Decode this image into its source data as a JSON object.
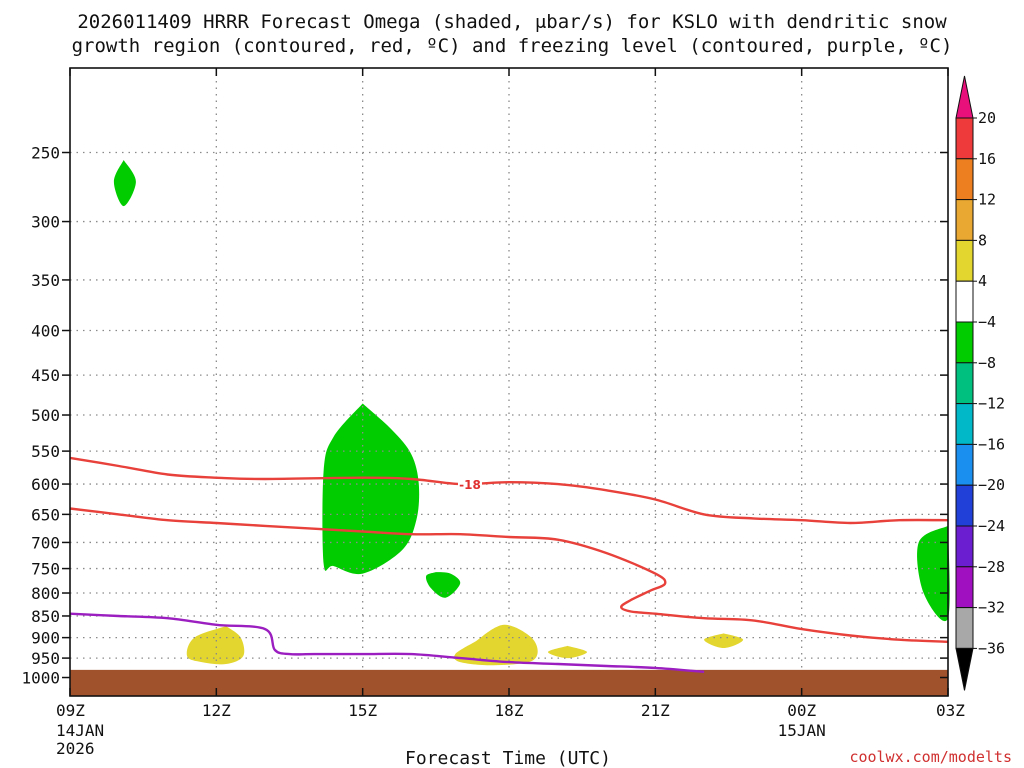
{
  "title": {
    "line1": "2026011409 HRRR Forecast Omega (shaded, μbar/s) for KSLO with dendritic snow",
    "line2": "growth region (contoured, red, ºC) and freezing level (contoured, purple, ºC)"
  },
  "credit": "coolwx.com/modelts",
  "colors": {
    "ground": "#a0522d",
    "dgz_contour": "#e8403a",
    "freezing_level": "#9b1fc0",
    "grid": "#8a8a8a"
  },
  "chart_data": {
    "type": "heatmap",
    "xlabel": "Forecast Time (UTC)",
    "x_ticks": [
      {
        "hour": 0,
        "label": "09Z",
        "sub": [
          "14JAN",
          "2026"
        ]
      },
      {
        "hour": 3,
        "label": "12Z",
        "sub": []
      },
      {
        "hour": 6,
        "label": "15Z",
        "sub": []
      },
      {
        "hour": 9,
        "label": "18Z",
        "sub": []
      },
      {
        "hour": 12,
        "label": "21Z",
        "sub": []
      },
      {
        "hour": 15,
        "label": "00Z",
        "sub": [
          "15JAN"
        ]
      },
      {
        "hour": 18,
        "label": "03Z",
        "sub": []
      }
    ],
    "xlim_hours": [
      0,
      18
    ],
    "y_scale": "log",
    "ylim_hPa": [
      1050,
      200
    ],
    "y_ticks": [
      250,
      300,
      350,
      400,
      450,
      500,
      550,
      600,
      650,
      700,
      750,
      800,
      850,
      900,
      950,
      1000
    ],
    "grid": true,
    "colorbar": {
      "ticks": [
        "20",
        "16",
        "12",
        "8",
        "4",
        "−4",
        "−8",
        "−12",
        "−16",
        "−20",
        "−24",
        "−28",
        "−32",
        "−36"
      ],
      "bins": [
        {
          "range": [
            20,
            99
          ],
          "color": "#e8107a"
        },
        {
          "range": [
            16,
            20
          ],
          "color": "#ee3a3a"
        },
        {
          "range": [
            12,
            16
          ],
          "color": "#ee7f20"
        },
        {
          "range": [
            8,
            12
          ],
          "color": "#e8a831"
        },
        {
          "range": [
            4,
            8
          ],
          "color": "#e3d62e"
        },
        {
          "range": [
            -4,
            4
          ],
          "color": "#ffffff"
        },
        {
          "range": [
            -8,
            -4
          ],
          "color": "#00cc00"
        },
        {
          "range": [
            -12,
            -8
          ],
          "color": "#00c080"
        },
        {
          "range": [
            -16,
            -12
          ],
          "color": "#00b8c8"
        },
        {
          "range": [
            -20,
            -16
          ],
          "color": "#1a8ff0"
        },
        {
          "range": [
            -24,
            -20
          ],
          "color": "#2040d8"
        },
        {
          "range": [
            -28,
            -24
          ],
          "color": "#6a1ed0"
        },
        {
          "range": [
            -32,
            -28
          ],
          "color": "#a010c0"
        },
        {
          "range": [
            -36,
            -32
          ],
          "color": "#a8a8a8"
        },
        {
          "range": [
            -99,
            -36
          ],
          "color": "#000000"
        }
      ]
    },
    "shaded_regions": [
      {
        "bin": "-8 to -4",
        "color": "#00cc00",
        "points": [
          [
            1.1,
            255
          ],
          [
            1.35,
            270
          ],
          [
            1.1,
            288
          ],
          [
            0.9,
            270
          ]
        ]
      },
      {
        "bin": "-8 to -4",
        "color": "#00cc00",
        "points": [
          [
            6.0,
            485
          ],
          [
            6.6,
            520
          ],
          [
            7.0,
            555
          ],
          [
            7.15,
            600
          ],
          [
            7.1,
            660
          ],
          [
            6.8,
            715
          ],
          [
            6.0,
            760
          ],
          [
            5.4,
            745
          ],
          [
            5.2,
            740
          ],
          [
            5.2,
            580
          ],
          [
            5.4,
            530
          ]
        ]
      },
      {
        "bin": "-8 to -4",
        "color": "#00cc00",
        "points": [
          [
            7.5,
            757
          ],
          [
            7.8,
            760
          ],
          [
            8.0,
            780
          ],
          [
            7.7,
            810
          ],
          [
            7.4,
            790
          ],
          [
            7.3,
            765
          ]
        ]
      },
      {
        "bin": "4 to 8",
        "color": "#e3d62e",
        "points": [
          [
            3.2,
            873
          ],
          [
            3.5,
            900
          ],
          [
            3.55,
            945
          ],
          [
            3.2,
            965
          ],
          [
            2.7,
            960
          ],
          [
            2.4,
            945
          ],
          [
            2.55,
            900
          ]
        ]
      },
      {
        "bin": "4 to 8",
        "color": "#e3d62e",
        "points": [
          [
            8.3,
            910
          ],
          [
            8.9,
            870
          ],
          [
            9.5,
            905
          ],
          [
            9.5,
            955
          ],
          [
            8.7,
            968
          ],
          [
            8.0,
            960
          ],
          [
            7.9,
            940
          ]
        ]
      },
      {
        "bin": "4 to 8",
        "color": "#e3d62e",
        "points": [
          [
            10.2,
            920
          ],
          [
            10.6,
            935
          ],
          [
            10.2,
            950
          ],
          [
            9.8,
            935
          ]
        ]
      },
      {
        "bin": "4 to 8",
        "color": "#e3d62e",
        "points": [
          [
            13.4,
            890
          ],
          [
            13.8,
            905
          ],
          [
            13.4,
            925
          ],
          [
            13.0,
            905
          ]
        ]
      },
      {
        "bin": "-8 to -4",
        "color": "#00cc00",
        "points": [
          [
            18.0,
            670
          ],
          [
            18.0,
            855
          ],
          [
            17.5,
            800
          ],
          [
            17.4,
            700
          ]
        ]
      }
    ],
    "dgz_contours": [
      {
        "label": "-18",
        "label_at": [
          8.2,
          600
        ],
        "points": [
          [
            0,
            560
          ],
          [
            1,
            572
          ],
          [
            2,
            585
          ],
          [
            3,
            590
          ],
          [
            4,
            592
          ],
          [
            6,
            590
          ],
          [
            7,
            592
          ],
          [
            8,
            600
          ],
          [
            9,
            597
          ],
          [
            10,
            600
          ],
          [
            11,
            610
          ],
          [
            12,
            625
          ],
          [
            13,
            650
          ],
          [
            14,
            657
          ],
          [
            15,
            660
          ],
          [
            16,
            665
          ],
          [
            17,
            660
          ],
          [
            18,
            660
          ]
        ]
      },
      {
        "label": "",
        "points": [
          [
            0,
            640
          ],
          [
            1,
            650
          ],
          [
            2,
            660
          ],
          [
            3,
            665
          ],
          [
            4,
            670
          ],
          [
            6,
            680
          ],
          [
            7,
            685
          ],
          [
            8,
            685
          ],
          [
            9,
            690
          ],
          [
            10,
            695
          ],
          [
            11,
            720
          ],
          [
            12,
            760
          ],
          [
            12.2,
            780
          ],
          [
            11.9,
            795
          ],
          [
            11.5,
            815
          ],
          [
            11.3,
            830
          ],
          [
            11.5,
            840
          ],
          [
            12,
            845
          ],
          [
            13,
            855
          ],
          [
            14,
            860
          ],
          [
            15,
            880
          ],
          [
            16,
            895
          ],
          [
            17,
            905
          ],
          [
            18,
            910
          ]
        ]
      }
    ],
    "freezing_level": {
      "points": [
        [
          0,
          845
        ],
        [
          1,
          850
        ],
        [
          2,
          855
        ],
        [
          3,
          870
        ],
        [
          4,
          880
        ],
        [
          4.2,
          930
        ],
        [
          4.5,
          940
        ],
        [
          5,
          940
        ],
        [
          6,
          940
        ],
        [
          7,
          940
        ],
        [
          8,
          950
        ],
        [
          9,
          960
        ],
        [
          10,
          965
        ],
        [
          11,
          970
        ],
        [
          12,
          975
        ],
        [
          13,
          985
        ]
      ]
    },
    "ground_hPa": 980
  }
}
